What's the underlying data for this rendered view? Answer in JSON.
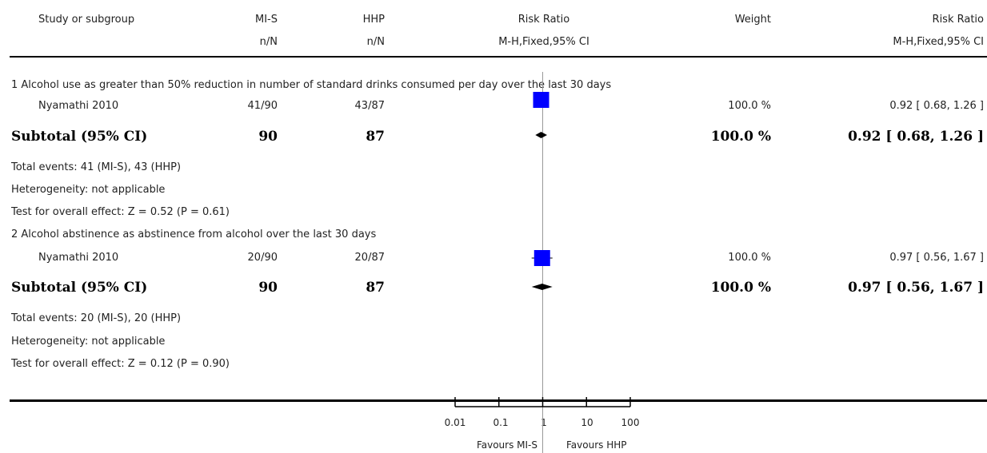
{
  "header": {
    "col_study": "Study or subgroup",
    "col_g1": "MI-S",
    "col_g1_sub": "n/N",
    "col_g2": "HHP",
    "col_g2_sub": "n/N",
    "col_rr": "Risk Ratio",
    "col_rr_sub": "M-H,Fixed,95% CI",
    "col_weight": "Weight",
    "col_rr2": "Risk Ratio",
    "col_rr2_sub": "M-H,Fixed,95% CI"
  },
  "subgroups": [
    {
      "title": "1 Alcohol use as greater than 50% reduction in number of standard drinks consumed per day over the last 30 days",
      "study": {
        "name": "Nyamathi 2010",
        "g1": "41/90",
        "g2": "43/87",
        "weight": "100.0 %",
        "ci": "0.92 [ 0.68, 1.26 ]"
      },
      "subtotal": {
        "label": "Subtotal (95% CI)",
        "g1": "90",
        "g2": "87",
        "weight": "100.0 %",
        "ci": "0.92 [ 0.68, 1.26 ]"
      },
      "events": "Total events: 41 (MI-S), 43 (HHP)",
      "heterogeneity": "Heterogeneity: not applicable",
      "overall": "Test for overall effect: Z = 0.52 (P = 0.61)"
    },
    {
      "title": "2 Alcohol abstinence as abstinence from alcohol over the last 30 days",
      "study": {
        "name": "Nyamathi 2010",
        "g1": "20/90",
        "g2": "20/87",
        "weight": "100.0 %",
        "ci": "0.97 [ 0.56, 1.67 ]"
      },
      "subtotal": {
        "label": "Subtotal (95% CI)",
        "g1": "90",
        "g2": "87",
        "weight": "100.0 %",
        "ci": "0.97 [ 0.56, 1.67 ]"
      },
      "events": "Total events: 20 (MI-S), 20 (HHP)",
      "heterogeneity": "Heterogeneity: not applicable",
      "overall": "Test for overall effect: Z = 0.12 (P = 0.90)"
    }
  ],
  "axis": {
    "ticks": [
      "0.01",
      "0.1",
      "1",
      "10",
      "100"
    ],
    "favours_left": "Favours MI-S",
    "favours_right": "Favours HHP"
  },
  "chart_data": {
    "type": "forest",
    "scale": "log",
    "xlim": [
      0.01,
      100
    ],
    "tick_values": [
      0.01,
      0.1,
      1,
      10,
      100
    ],
    "null_value": 1,
    "colors": {
      "study_marker": "#0000ff",
      "diamond": "#000000",
      "null_line": "#999999"
    },
    "studies": [
      {
        "subgroup": 1,
        "rr": 0.92,
        "lo": 0.68,
        "hi": 1.26,
        "weight": 100.0
      },
      {
        "subgroup": 2,
        "rr": 0.97,
        "lo": 0.56,
        "hi": 1.67,
        "weight": 100.0
      }
    ],
    "subtotals": [
      {
        "subgroup": 1,
        "rr": 0.92,
        "lo": 0.68,
        "hi": 1.26
      },
      {
        "subgroup": 2,
        "rr": 0.97,
        "lo": 0.56,
        "hi": 1.67
      }
    ]
  }
}
